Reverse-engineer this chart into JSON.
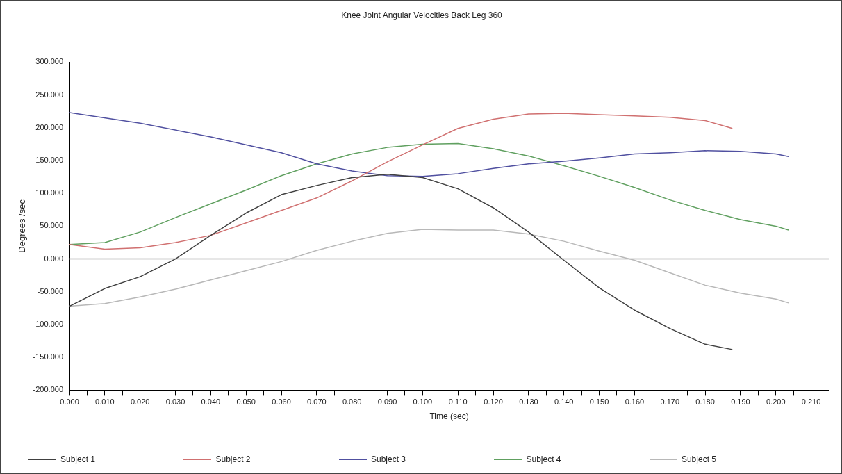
{
  "chart_data": {
    "type": "line",
    "title": "Knee Joint Angular Velocities Back Leg 360",
    "xlabel": "Time (sec)",
    "ylabel": "Degrees /sec",
    "xlim": [
      0,
      0.215
    ],
    "xticks": [
      {
        "value": 0,
        "label": "0.000"
      },
      {
        "value": 0.005,
        "label": null
      },
      {
        "value": 0.01,
        "label": "0.010"
      },
      {
        "value": 0.015,
        "label": null
      },
      {
        "value": 0.02,
        "label": "0.020"
      },
      {
        "value": 0.025,
        "label": null
      },
      {
        "value": 0.03,
        "label": "0.030"
      },
      {
        "value": 0.035,
        "label": null
      },
      {
        "value": 0.04,
        "label": "0.040"
      },
      {
        "value": 0.045,
        "label": null
      },
      {
        "value": 0.05,
        "label": "0.050"
      },
      {
        "value": 0.055,
        "label": null
      },
      {
        "value": 0.06,
        "label": "0.060"
      },
      {
        "value": 0.065,
        "label": null
      },
      {
        "value": 0.07,
        "label": "0.070"
      },
      {
        "value": 0.075,
        "label": null
      },
      {
        "value": 0.08,
        "label": "0.080"
      },
      {
        "value": 0.085,
        "label": null
      },
      {
        "value": 0.09,
        "label": "0.090"
      },
      {
        "value": 0.095,
        "label": null
      },
      {
        "value": 0.1,
        "label": "0.100"
      },
      {
        "value": 0.105,
        "label": null
      },
      {
        "value": 0.11,
        "label": "0.110"
      },
      {
        "value": 0.115,
        "label": null
      },
      {
        "value": 0.12,
        "label": "0.120"
      },
      {
        "value": 0.125,
        "label": null
      },
      {
        "value": 0.13,
        "label": "0.130"
      },
      {
        "value": 0.135,
        "label": null
      },
      {
        "value": 0.14,
        "label": "0.140"
      },
      {
        "value": 0.145,
        "label": null
      },
      {
        "value": 0.15,
        "label": "0.150"
      },
      {
        "value": 0.155,
        "label": null
      },
      {
        "value": 0.16,
        "label": "0.160"
      },
      {
        "value": 0.165,
        "label": null
      },
      {
        "value": 0.17,
        "label": "0.170"
      },
      {
        "value": 0.175,
        "label": null
      },
      {
        "value": 0.18,
        "label": "0.180"
      },
      {
        "value": 0.185,
        "label": null
      },
      {
        "value": 0.19,
        "label": "0.190"
      },
      {
        "value": 0.195,
        "label": null
      },
      {
        "value": 0.2,
        "label": "0.200"
      },
      {
        "value": 0.205,
        "label": null
      },
      {
        "value": 0.21,
        "label": "0.210"
      },
      {
        "value": 0.215,
        "label": null
      }
    ],
    "ylim": [
      -200,
      300
    ],
    "yticks": [
      {
        "value": -200,
        "label": "-200.000"
      },
      {
        "value": -150,
        "label": "-150.000"
      },
      {
        "value": -100,
        "label": "-100.000"
      },
      {
        "value": -50,
        "label": "-50.000"
      },
      {
        "value": 0,
        "label": "0.000"
      },
      {
        "value": 50,
        "label": "50.000"
      },
      {
        "value": 100,
        "label": "100.000"
      },
      {
        "value": 150,
        "label": "150.000"
      },
      {
        "value": 200,
        "label": "200.000"
      },
      {
        "value": 250,
        "label": "250.000"
      },
      {
        "value": 300,
        "label": "300.000"
      }
    ],
    "grid": false,
    "legend": "bottom",
    "marker": "none",
    "line_style": "solid",
    "ref_lines": [
      {
        "axis": "y",
        "value": 0,
        "color": "#a0a0a0"
      }
    ],
    "series": [
      {
        "name": "Subject 1",
        "color": "#404040",
        "x": [
          0,
          0.01,
          0.02,
          0.03,
          0.04,
          0.05,
          0.06,
          0.07,
          0.08,
          0.09,
          0.1,
          0.11,
          0.12,
          0.13,
          0.14,
          0.15,
          0.16,
          0.17,
          0.18,
          0.1877
        ],
        "values": [
          -72,
          -45,
          -27,
          0,
          36,
          70,
          98,
          112,
          124,
          129,
          124,
          107,
          78,
          41,
          -2,
          -44,
          -78,
          -106,
          -130,
          -138
        ]
      },
      {
        "name": "Subject 2",
        "color": "#d07070",
        "x": [
          0,
          0.01,
          0.02,
          0.03,
          0.04,
          0.05,
          0.06,
          0.07,
          0.08,
          0.09,
          0.1,
          0.11,
          0.12,
          0.13,
          0.14,
          0.15,
          0.16,
          0.17,
          0.18,
          0.1877
        ],
        "values": [
          22,
          15,
          17,
          25,
          36,
          55,
          74,
          93,
          119,
          148,
          174,
          199,
          213,
          221,
          222,
          220,
          218,
          216,
          211,
          199
        ]
      },
      {
        "name": "Subject 3",
        "color": "#5050a0",
        "x": [
          0,
          0.02,
          0.04,
          0.06,
          0.07,
          0.08,
          0.09,
          0.1,
          0.11,
          0.12,
          0.13,
          0.14,
          0.15,
          0.16,
          0.17,
          0.18,
          0.19,
          0.2,
          0.2036
        ],
        "values": [
          223,
          207,
          186,
          162,
          145,
          134,
          127,
          126,
          130,
          138,
          145,
          149,
          154,
          160,
          162,
          165,
          164,
          160,
          156
        ]
      },
      {
        "name": "Subject 4",
        "color": "#60a060",
        "x": [
          0,
          0.01,
          0.02,
          0.03,
          0.04,
          0.05,
          0.06,
          0.07,
          0.08,
          0.09,
          0.1,
          0.11,
          0.12,
          0.13,
          0.14,
          0.15,
          0.16,
          0.17,
          0.18,
          0.19,
          0.2,
          0.2036
        ],
        "values": [
          22,
          25,
          41,
          63,
          84,
          105,
          127,
          145,
          160,
          170,
          175,
          176,
          168,
          157,
          142,
          126,
          109,
          90,
          74,
          60,
          50,
          44
        ]
      },
      {
        "name": "Subject 5",
        "color": "#b8b8b8",
        "x": [
          0,
          0.01,
          0.02,
          0.03,
          0.04,
          0.05,
          0.06,
          0.07,
          0.08,
          0.09,
          0.1,
          0.11,
          0.12,
          0.13,
          0.14,
          0.15,
          0.16,
          0.17,
          0.18,
          0.19,
          0.2,
          0.2036
        ],
        "values": [
          -72,
          -68,
          -58,
          -46,
          -32,
          -18,
          -4,
          13,
          27,
          39,
          45,
          44,
          44,
          38,
          27,
          12,
          -2,
          -21,
          -40,
          -52,
          -61,
          -67
        ]
      }
    ]
  }
}
